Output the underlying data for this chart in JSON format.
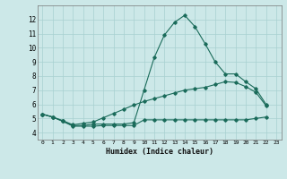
{
  "title": "",
  "xlabel": "Humidex (Indice chaleur)",
  "xlim": [
    -0.5,
    23.5
  ],
  "ylim": [
    3.5,
    13.0
  ],
  "yticks": [
    4,
    5,
    6,
    7,
    8,
    9,
    10,
    11,
    12
  ],
  "xticks": [
    0,
    1,
    2,
    3,
    4,
    5,
    6,
    7,
    8,
    9,
    10,
    11,
    12,
    13,
    14,
    15,
    16,
    17,
    18,
    19,
    20,
    21,
    22,
    23
  ],
  "bg_color": "#cce8e8",
  "line_color": "#1a6b5a",
  "line1_x": [
    0,
    1,
    2,
    3,
    4,
    5,
    6,
    7,
    8,
    9,
    10,
    11,
    12,
    13,
    14,
    15,
    16,
    17,
    18,
    19,
    20,
    21,
    22
  ],
  "line1_y": [
    5.3,
    5.1,
    4.8,
    4.5,
    4.5,
    4.6,
    4.6,
    4.6,
    4.6,
    4.7,
    7.0,
    9.3,
    10.9,
    11.8,
    12.3,
    11.5,
    10.3,
    9.0,
    8.15,
    8.15,
    7.6,
    7.1,
    6.0
  ],
  "line2_x": [
    0,
    1,
    2,
    3,
    4,
    5,
    6,
    7,
    8,
    9,
    10,
    11,
    12,
    13,
    14,
    15,
    16,
    17,
    18,
    19,
    20,
    21,
    22
  ],
  "line2_y": [
    5.3,
    5.1,
    4.85,
    4.55,
    4.65,
    4.75,
    5.05,
    5.35,
    5.65,
    5.95,
    6.2,
    6.4,
    6.6,
    6.8,
    7.0,
    7.1,
    7.2,
    7.4,
    7.6,
    7.55,
    7.25,
    6.85,
    5.9
  ],
  "line3_x": [
    0,
    1,
    2,
    3,
    4,
    5,
    6,
    7,
    8,
    9,
    10,
    11,
    12,
    13,
    14,
    15,
    16,
    17,
    18,
    19,
    20,
    21,
    22
  ],
  "line3_y": [
    5.3,
    5.1,
    4.8,
    4.45,
    4.45,
    4.45,
    4.5,
    4.5,
    4.5,
    4.5,
    4.9,
    4.9,
    4.9,
    4.9,
    4.9,
    4.9,
    4.9,
    4.9,
    4.9,
    4.9,
    4.9,
    5.0,
    5.1
  ]
}
